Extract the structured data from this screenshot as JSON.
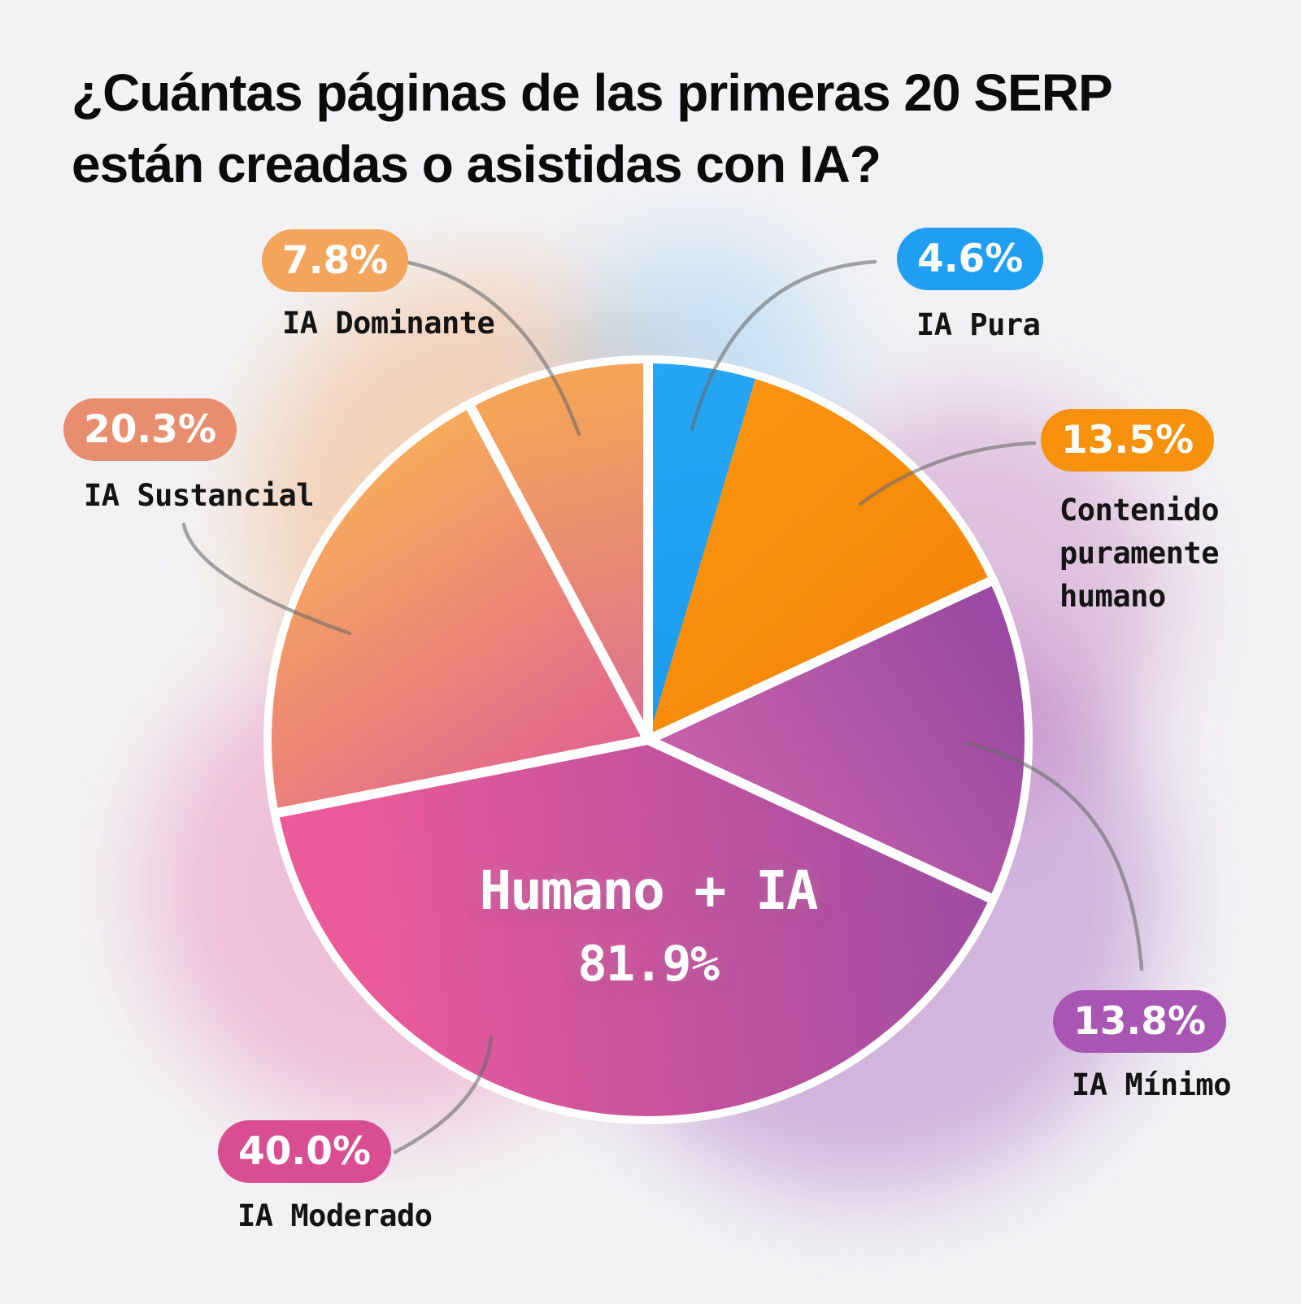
{
  "title": {
    "line1": "¿Cuántas páginas de las primeras 20 SERP",
    "line2": "están creadas o asistidas con IA?"
  },
  "theme": {
    "background": "#F2F2F4",
    "title_color": "#0B0B0B",
    "label_color": "#141414",
    "badge_text_color": "#FFFFFF",
    "center_text_color": "#FFFFFF",
    "divider_color": "#FFFFFF",
    "connector_color": "#6B6B6E"
  },
  "chart_data": {
    "type": "pie",
    "title": "¿Cuántas páginas de las primeras 20 SERP están creadas o asistidas con IA?",
    "units": "%",
    "legend_position": "around",
    "center_label": {
      "text": "Humano + IA",
      "value": 81.9,
      "display": "81.9%"
    },
    "segments": [
      {
        "label": "IA Pura",
        "value": 4.6,
        "display": "4.6%",
        "badge_color": "#209FF2",
        "slice_color_from": "#27A6F5",
        "slice_color_to": "#1C9BEE",
        "divider_at_start": true
      },
      {
        "label": "Contenido puramente humano",
        "value": 13.5,
        "display": "13.5%",
        "badge_color": "#F7900A",
        "slice_color_from": "#FA9511",
        "slice_color_to": "#F68708",
        "divider_at_start": false
      },
      {
        "label": "IA Mínimo",
        "value": 13.8,
        "display": "13.8%",
        "badge_color": "#A855B4",
        "slice_color_from": "#C55FA9",
        "slice_color_to": "#9A4AA2",
        "divider_at_start": true
      },
      {
        "label": "IA Moderado",
        "value": 40.0,
        "display": "40.0%",
        "badge_color": "#D94E93",
        "slice_color_from": "#EB5A99",
        "slice_color_to": "#9C4BA3",
        "divider_at_start": true
      },
      {
        "label": "IA Sustancial",
        "value": 20.3,
        "display": "20.3%",
        "badge_color": "#E88E6E",
        "slice_color_from": "#F7AD59",
        "slice_color_to": "#E05E95",
        "divider_at_start": true
      },
      {
        "label": "IA Dominante",
        "value": 7.8,
        "display": "7.8%",
        "badge_color": "#F3A65B",
        "slice_color_from": "#F5A457",
        "slice_color_to": "#DB7191",
        "divider_at_start": true
      }
    ]
  }
}
